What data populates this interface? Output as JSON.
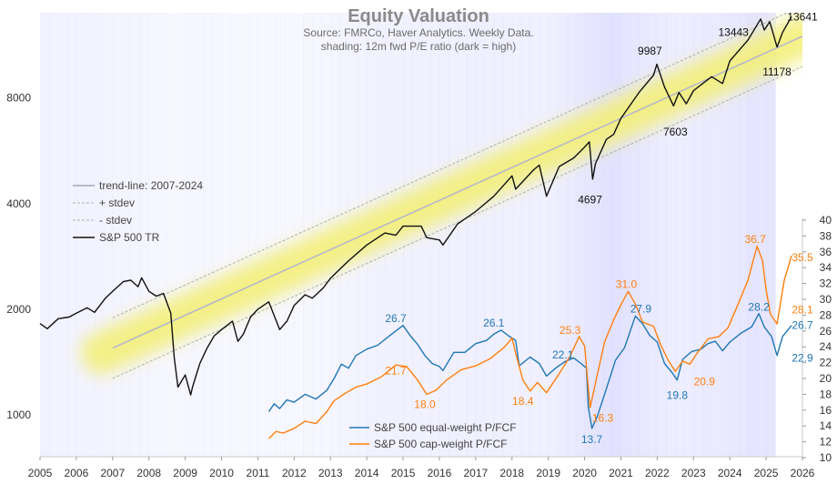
{
  "chart_data": {
    "type": "line",
    "title": "Equity Valuation",
    "subtitle_lines": [
      "Source: FMRCo, Haver Analytics. Weekly Data.",
      "shading: 12m fwd P/E ratio (dark = high)"
    ],
    "x_ticks": [
      "2005",
      "2006",
      "2007",
      "2008",
      "2009",
      "2010",
      "2011",
      "2012",
      "2013",
      "2014",
      "2015",
      "2016",
      "2017",
      "2018",
      "2019",
      "2020",
      "2021",
      "2022",
      "2023",
      "2024",
      "2025",
      "2026"
    ],
    "y_left": {
      "scale": "log",
      "range": [
        760,
        14000
      ],
      "ticks": [
        1000,
        2000,
        4000,
        8000
      ]
    },
    "y_right": {
      "scale": "linear",
      "range": [
        10,
        40
      ],
      "ticks": [
        10,
        12,
        14,
        16,
        18,
        20,
        22,
        24,
        26,
        28,
        30,
        32,
        34,
        36,
        38,
        40
      ]
    },
    "legend_left": [
      "trend-line: 2007-2024",
      "+ stdev",
      "- stdev",
      "S&P 500 TR"
    ],
    "legend_right": [
      "S&P 500 equal-weight P/FCF",
      "S&P 500 cap-weight P/FCF"
    ],
    "colors": {
      "sp500": "#111111",
      "trend": "#b8b8c8",
      "band": "#f3f07a",
      "equal": "#1f77b4",
      "cap": "#ff7f0e",
      "shade": "#dcdcff"
    },
    "shading_pe": [
      {
        "x": 2005.0,
        "v": 0.25
      },
      {
        "x": 2007.0,
        "v": 0.2
      },
      {
        "x": 2008.5,
        "v": 0.1
      },
      {
        "x": 2009.5,
        "v": 0.12
      },
      {
        "x": 2011.0,
        "v": 0.08
      },
      {
        "x": 2012.5,
        "v": 0.12
      },
      {
        "x": 2014.0,
        "v": 0.25
      },
      {
        "x": 2015.5,
        "v": 0.3
      },
      {
        "x": 2017.0,
        "v": 0.35
      },
      {
        "x": 2018.0,
        "v": 0.3
      },
      {
        "x": 2019.0,
        "v": 0.35
      },
      {
        "x": 2019.8,
        "v": 0.6
      },
      {
        "x": 2020.3,
        "v": 0.75
      },
      {
        "x": 2020.8,
        "v": 0.8
      },
      {
        "x": 2021.5,
        "v": 0.6
      },
      {
        "x": 2022.3,
        "v": 0.4
      },
      {
        "x": 2023.0,
        "v": 0.45
      },
      {
        "x": 2023.8,
        "v": 0.55
      },
      {
        "x": 2024.5,
        "v": 0.7
      },
      {
        "x": 2025.0,
        "v": 0.65
      }
    ],
    "trend": {
      "x_start": 2007.0,
      "y_start": 1550,
      "x_end": 2026.0,
      "y_end": 12000,
      "stdev_factor": 1.22
    },
    "series": [
      {
        "name": "S&P 500 TR",
        "axis": "left",
        "points": [
          [
            2005.0,
            1820
          ],
          [
            2005.2,
            1760
          ],
          [
            2005.5,
            1880
          ],
          [
            2005.8,
            1900
          ],
          [
            2006.0,
            1950
          ],
          [
            2006.3,
            2020
          ],
          [
            2006.5,
            1960
          ],
          [
            2006.8,
            2150
          ],
          [
            2007.0,
            2250
          ],
          [
            2007.3,
            2400
          ],
          [
            2007.5,
            2420
          ],
          [
            2007.7,
            2320
          ],
          [
            2007.8,
            2460
          ],
          [
            2008.0,
            2250
          ],
          [
            2008.2,
            2180
          ],
          [
            2008.4,
            2220
          ],
          [
            2008.6,
            1950
          ],
          [
            2008.7,
            1450
          ],
          [
            2008.8,
            1200
          ],
          [
            2009.0,
            1300
          ],
          [
            2009.15,
            1140
          ],
          [
            2009.2,
            1200
          ],
          [
            2009.4,
            1400
          ],
          [
            2009.6,
            1550
          ],
          [
            2009.8,
            1680
          ],
          [
            2010.0,
            1750
          ],
          [
            2010.3,
            1850
          ],
          [
            2010.45,
            1620
          ],
          [
            2010.6,
            1700
          ],
          [
            2010.8,
            1900
          ],
          [
            2011.0,
            2000
          ],
          [
            2011.3,
            2100
          ],
          [
            2011.6,
            1750
          ],
          [
            2011.8,
            1850
          ],
          [
            2012.0,
            2050
          ],
          [
            2012.3,
            2200
          ],
          [
            2012.5,
            2150
          ],
          [
            2012.8,
            2300
          ],
          [
            2013.0,
            2450
          ],
          [
            2013.5,
            2750
          ],
          [
            2014.0,
            3050
          ],
          [
            2014.5,
            3300
          ],
          [
            2014.8,
            3250
          ],
          [
            2015.0,
            3450
          ],
          [
            2015.5,
            3450
          ],
          [
            2015.65,
            3200
          ],
          [
            2016.0,
            3150
          ],
          [
            2016.1,
            3050
          ],
          [
            2016.5,
            3500
          ],
          [
            2017.0,
            3800
          ],
          [
            2017.5,
            4200
          ],
          [
            2018.0,
            4800
          ],
          [
            2018.1,
            4400
          ],
          [
            2018.6,
            5000
          ],
          [
            2018.75,
            5150
          ],
          [
            2018.95,
            4200
          ],
          [
            2019.3,
            5100
          ],
          [
            2019.7,
            5400
          ],
          [
            2020.0,
            5800
          ],
          [
            2020.13,
            6000
          ],
          [
            2020.22,
            4697
          ],
          [
            2020.3,
            5200
          ],
          [
            2020.6,
            6100
          ],
          [
            2020.8,
            6300
          ],
          [
            2021.0,
            7000
          ],
          [
            2021.5,
            8300
          ],
          [
            2021.9,
            9300
          ],
          [
            2021.99,
            9987
          ],
          [
            2022.2,
            8600
          ],
          [
            2022.45,
            7603
          ],
          [
            2022.6,
            8300
          ],
          [
            2022.8,
            7700
          ],
          [
            2023.0,
            8400
          ],
          [
            2023.5,
            9200
          ],
          [
            2023.8,
            8800
          ],
          [
            2024.0,
            10200
          ],
          [
            2024.5,
            11700
          ],
          [
            2024.85,
            13443
          ],
          [
            2024.95,
            12500
          ],
          [
            2025.1,
            13200
          ],
          [
            2025.3,
            11178
          ],
          [
            2025.45,
            12300
          ],
          [
            2025.7,
            13641
          ]
        ]
      },
      {
        "name": "S&P 500 equal-weight P/FCF",
        "axis": "right",
        "points": [
          [
            2011.3,
            15.8
          ],
          [
            2011.45,
            16.8
          ],
          [
            2011.6,
            16.2
          ],
          [
            2011.8,
            17.3
          ],
          [
            2012.0,
            17.0
          ],
          [
            2012.3,
            18.0
          ],
          [
            2012.6,
            17.4
          ],
          [
            2012.9,
            18.5
          ],
          [
            2013.1,
            20.0
          ],
          [
            2013.3,
            21.8
          ],
          [
            2013.5,
            21.3
          ],
          [
            2013.7,
            22.9
          ],
          [
            2014.0,
            23.7
          ],
          [
            2014.3,
            24.2
          ],
          [
            2014.6,
            25.3
          ],
          [
            2015.0,
            26.7
          ],
          [
            2015.2,
            25.4
          ],
          [
            2015.4,
            24.3
          ],
          [
            2015.6,
            22.9
          ],
          [
            2015.8,
            21.9
          ],
          [
            2016.0,
            21.5
          ],
          [
            2016.1,
            21.0
          ],
          [
            2016.4,
            23.3
          ],
          [
            2016.7,
            23.3
          ],
          [
            2017.0,
            24.4
          ],
          [
            2017.3,
            24.8
          ],
          [
            2017.5,
            25.6
          ],
          [
            2017.7,
            26.1
          ],
          [
            2017.9,
            25.4
          ],
          [
            2018.1,
            24.8
          ],
          [
            2018.2,
            21.6
          ],
          [
            2018.5,
            22.7
          ],
          [
            2018.75,
            21.9
          ],
          [
            2018.95,
            20.3
          ],
          [
            2019.2,
            21.3
          ],
          [
            2019.45,
            22.1
          ],
          [
            2019.7,
            22.6
          ],
          [
            2019.9,
            21.9
          ],
          [
            2020.05,
            21.3
          ],
          [
            2020.1,
            16.4
          ],
          [
            2020.2,
            13.7
          ],
          [
            2020.35,
            15.2
          ],
          [
            2020.6,
            18.7
          ],
          [
            2020.85,
            22.3
          ],
          [
            2021.1,
            23.9
          ],
          [
            2021.4,
            27.9
          ],
          [
            2021.6,
            26.9
          ],
          [
            2021.8,
            25.4
          ],
          [
            2022.0,
            24.6
          ],
          [
            2022.2,
            21.9
          ],
          [
            2022.4,
            20.8
          ],
          [
            2022.55,
            19.8
          ],
          [
            2022.7,
            22.4
          ],
          [
            2022.95,
            23.4
          ],
          [
            2023.2,
            23.7
          ],
          [
            2023.4,
            24.4
          ],
          [
            2023.6,
            24.7
          ],
          [
            2023.8,
            23.5
          ],
          [
            2024.0,
            24.6
          ],
          [
            2024.3,
            25.7
          ],
          [
            2024.6,
            26.5
          ],
          [
            2024.8,
            28.2
          ],
          [
            2024.95,
            26.5
          ],
          [
            2025.15,
            25.3
          ],
          [
            2025.3,
            22.9
          ],
          [
            2025.45,
            25.3
          ],
          [
            2025.7,
            26.7
          ]
        ]
      },
      {
        "name": "S&P 500 cap-weight P/FCF",
        "axis": "right",
        "points": [
          [
            2011.3,
            12.4
          ],
          [
            2011.5,
            13.3
          ],
          [
            2011.7,
            13.1
          ],
          [
            2012.0,
            13.7
          ],
          [
            2012.3,
            14.6
          ],
          [
            2012.6,
            14.3
          ],
          [
            2012.9,
            15.8
          ],
          [
            2013.1,
            17.2
          ],
          [
            2013.4,
            18.1
          ],
          [
            2013.7,
            18.9
          ],
          [
            2014.0,
            19.3
          ],
          [
            2014.4,
            20.2
          ],
          [
            2014.8,
            21.7
          ],
          [
            2015.1,
            21.5
          ],
          [
            2015.4,
            19.8
          ],
          [
            2015.65,
            18.0
          ],
          [
            2015.9,
            18.5
          ],
          [
            2016.2,
            19.8
          ],
          [
            2016.6,
            21.1
          ],
          [
            2017.0,
            21.6
          ],
          [
            2017.4,
            22.5
          ],
          [
            2017.8,
            24.0
          ],
          [
            2018.0,
            25.1
          ],
          [
            2018.1,
            23.2
          ],
          [
            2018.3,
            19.8
          ],
          [
            2018.5,
            18.4
          ],
          [
            2018.7,
            19.5
          ],
          [
            2018.95,
            18.2
          ],
          [
            2019.3,
            20.6
          ],
          [
            2019.6,
            22.8
          ],
          [
            2019.85,
            25.3
          ],
          [
            2020.0,
            24.1
          ],
          [
            2020.15,
            16.3
          ],
          [
            2020.3,
            19.4
          ],
          [
            2020.55,
            24.6
          ],
          [
            2020.8,
            27.4
          ],
          [
            2021.0,
            29.3
          ],
          [
            2021.2,
            31.0
          ],
          [
            2021.4,
            29.4
          ],
          [
            2021.6,
            27.1
          ],
          [
            2021.9,
            26.6
          ],
          [
            2022.1,
            24.2
          ],
          [
            2022.3,
            22.3
          ],
          [
            2022.5,
            20.9
          ],
          [
            2022.7,
            22.2
          ],
          [
            2022.9,
            21.8
          ],
          [
            2023.1,
            23.2
          ],
          [
            2023.4,
            25.0
          ],
          [
            2023.7,
            25.3
          ],
          [
            2023.95,
            26.4
          ],
          [
            2024.2,
            29.1
          ],
          [
            2024.5,
            32.4
          ],
          [
            2024.75,
            36.7
          ],
          [
            2024.9,
            34.9
          ],
          [
            2025.0,
            31.2
          ],
          [
            2025.12,
            28.1
          ],
          [
            2025.3,
            26.9
          ],
          [
            2025.5,
            32.4
          ],
          [
            2025.7,
            35.5
          ]
        ]
      }
    ],
    "annotations": [
      {
        "text": "13443",
        "x": 2024.1,
        "y": 12300,
        "axis": "left",
        "color": "#111111"
      },
      {
        "text": "13641",
        "x": 2026.0,
        "y": 13641,
        "axis": "left",
        "color": "#111111"
      },
      {
        "text": "9987",
        "x": 2021.8,
        "y": 10900,
        "axis": "left",
        "color": "#111111"
      },
      {
        "text": "11178",
        "x": 2025.3,
        "y": 9500,
        "axis": "left",
        "color": "#111111"
      },
      {
        "text": "7603",
        "x": 2022.5,
        "y": 6400,
        "axis": "left",
        "color": "#111111"
      },
      {
        "text": "4697",
        "x": 2020.15,
        "y": 4100,
        "axis": "left",
        "color": "#111111"
      },
      {
        "text": "26.7",
        "x": 2014.8,
        "y": 27.6,
        "axis": "right",
        "color": "#1f77b4"
      },
      {
        "text": "26.1",
        "x": 2017.5,
        "y": 27.0,
        "axis": "right",
        "color": "#1f77b4"
      },
      {
        "text": "22.1",
        "x": 2019.4,
        "y": 23.0,
        "axis": "right",
        "color": "#1f77b4"
      },
      {
        "text": "27.9",
        "x": 2021.55,
        "y": 28.8,
        "axis": "right",
        "color": "#1f77b4"
      },
      {
        "text": "19.8",
        "x": 2022.55,
        "y": 17.9,
        "axis": "right",
        "color": "#1f77b4"
      },
      {
        "text": "13.7",
        "x": 2020.2,
        "y": 12.3,
        "axis": "right",
        "color": "#1f77b4"
      },
      {
        "text": "28.2",
        "x": 2024.8,
        "y": 29.0,
        "axis": "right",
        "color": "#1f77b4"
      },
      {
        "text": "26.7",
        "x": 2026.0,
        "y": 26.7,
        "axis": "right",
        "color": "#1f77b4"
      },
      {
        "text": "22.9",
        "x": 2026.0,
        "y": 22.6,
        "axis": "right",
        "color": "#1f77b4"
      },
      {
        "text": "21.7",
        "x": 2014.8,
        "y": 21.0,
        "axis": "right",
        "color": "#ff7f0e"
      },
      {
        "text": "18.0",
        "x": 2015.6,
        "y": 16.7,
        "axis": "right",
        "color": "#ff7f0e"
      },
      {
        "text": "18.4",
        "x": 2018.3,
        "y": 17.1,
        "axis": "right",
        "color": "#ff7f0e"
      },
      {
        "text": "25.3",
        "x": 2019.6,
        "y": 26.1,
        "axis": "right",
        "color": "#ff7f0e"
      },
      {
        "text": "31.0",
        "x": 2021.15,
        "y": 31.9,
        "axis": "right",
        "color": "#ff7f0e"
      },
      {
        "text": "20.9",
        "x": 2023.3,
        "y": 19.6,
        "axis": "right",
        "color": "#ff7f0e"
      },
      {
        "text": "16.3",
        "x": 2020.5,
        "y": 15.0,
        "axis": "right",
        "color": "#ff7f0e"
      },
      {
        "text": "36.7",
        "x": 2024.7,
        "y": 37.6,
        "axis": "right",
        "color": "#ff7f0e"
      },
      {
        "text": "35.5",
        "x": 2026.0,
        "y": 35.3,
        "axis": "right",
        "color": "#ff7f0e"
      },
      {
        "text": "28.1",
        "x": 2026.0,
        "y": 28.7,
        "axis": "right",
        "color": "#ff7f0e"
      }
    ]
  }
}
